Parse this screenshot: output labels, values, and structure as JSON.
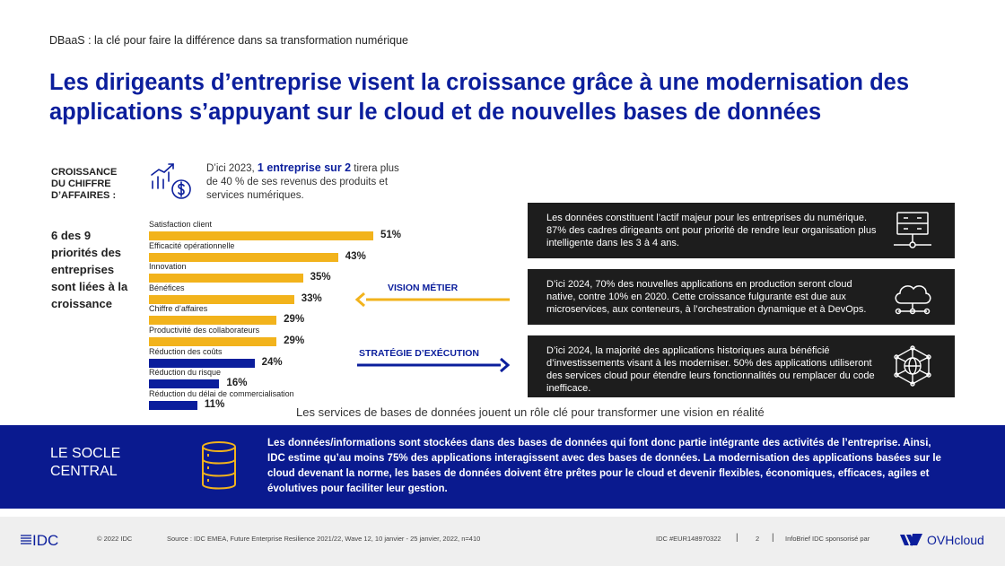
{
  "header": {
    "topline": "DBaaS : la clé pour faire la différence dans sa transformation numérique",
    "title": "Les dirigeants d’entreprise visent la croissance grâce à une modernisation des applications s’appuyant sur le cloud et de nouvelles bases de données"
  },
  "revenue": {
    "label_lines": [
      "CROISSANCE",
      "DU CHIFFRE",
      "D’AFFAIRES :"
    ],
    "text_prefix": "D’ici 2023, ",
    "text_bold": "1 entreprise sur 2",
    "text_suffix": " tirera plus de 40 % de ses revenus des produits et services numériques."
  },
  "priorities_text_lines": [
    "6 des 9",
    "priorités des",
    "entreprises",
    "sont liées à la",
    "croissance"
  ],
  "chart_data": {
    "type": "bar",
    "orientation": "horizontal",
    "categories": [
      "Satisfaction client",
      "Efficacité opérationnelle",
      "Innovation",
      "Bénéfices",
      "Chiffre d’affaires",
      "Productivité des collaborateurs",
      "Réduction des coûts",
      "Réduction du risque",
      "Réduction du délai de commercialisation"
    ],
    "values": [
      51,
      43,
      35,
      33,
      29,
      29,
      24,
      16,
      11
    ],
    "value_labels": [
      "51%",
      "43%",
      "35%",
      "33%",
      "29%",
      "29%",
      "24%",
      "16%",
      "11%"
    ],
    "groups": [
      "vision",
      "vision",
      "vision",
      "vision",
      "vision",
      "vision",
      "execution",
      "execution",
      "execution"
    ],
    "colors": {
      "vision": "#f2b31c",
      "execution": "#0b1e9c"
    }
  },
  "arrows": {
    "vision_label": "VISION MÉTIER",
    "execution_label": "STRATÉGIE D’EXÉCUTION",
    "vision_color": "#f2b31c",
    "execution_color": "#0b1e9c"
  },
  "boxes": [
    {
      "text": "Les données constituent l’actif majeur pour les entreprises du numérique. 87% des cadres dirigeants ont pour priorité de rendre leur organisation plus intelligente dans les 3 à 4 ans.",
      "icon": "data-server-icon"
    },
    {
      "text": "D’ici 2024, 70% des nouvelles applications en production seront cloud native, contre 10% en 2020. Cette croissance fulgurante est due aux microservices, aux conteneurs, à l’orchestration dynamique et à DevOps.",
      "icon": "cloud-network-icon"
    },
    {
      "text": "D’ici 2024, la majorité des applications historiques aura bénéficié d’investissements visant à les moderniser. 50% des applications utiliseront des services cloud pour étendre leurs fonctionnalités ou remplacer du code inefficace.",
      "icon": "globe-network-icon"
    }
  ],
  "caption": "Les services de bases de données jouent un rôle clé pour transformer une vision en réalité",
  "band": {
    "label_lines": [
      "LE SOCLE",
      "CENTRAL"
    ],
    "icon": "database-icon",
    "text": "Les données/informations sont stockées dans des bases de données qui font donc partie intégrante des activités de l’entreprise. Ainsi, IDC estime qu’au moins 75% des applications interagissent avec des bases de données. La modernisation des applications basées sur le cloud devenant la norme, les bases de données doivent être prêtes pour le cloud et devenir flexibles, économiques, efficaces, agiles et évolutives pour faciliter leur gestion.",
    "color": "#0a1a8f"
  },
  "footer": {
    "logo_text": "IDC",
    "copyright": "© 2022 IDC",
    "source": "Source : IDC EMEA, Future Enterprise Resilience 2021/22,  Wave 12,  10 janvier - 25 janvier, 2022, n=410",
    "doc_id": "IDC #EUR148970322",
    "sep1": "|",
    "page": "2",
    "sep2": "|",
    "sponsor": "InfoBrief IDC sponsorisé par",
    "sponsor_name": "OVHcloud"
  }
}
